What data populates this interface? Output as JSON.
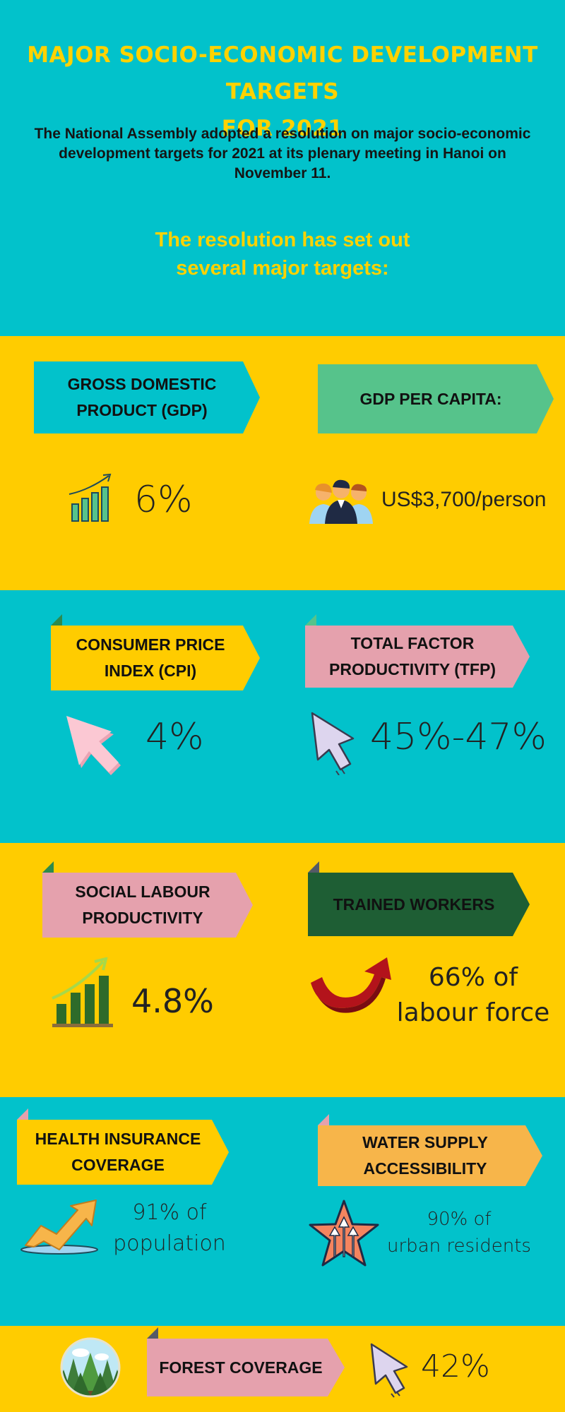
{
  "header": {
    "title_line1": "MAJOR SOCIO-ECONOMIC DEVELOPMENT TARGETS",
    "title_line2": "FOR 2021",
    "intro": "The National Assembly adopted a resolution on major socio-economic development targets for 2021 at its plenary meeting in Hanoi on November 11.",
    "lead_line1": "The resolution has set out",
    "lead_line2": "several major targets:"
  },
  "targets": [
    {
      "label_line1": "GROSS DOMESTIC",
      "label_line2": "PRODUCT (GDP)",
      "value": "6%",
      "icon": "bar-chart-arrow-icon",
      "color": "#02c2cb"
    },
    {
      "label_line1": "GDP PER CAPITA:",
      "label_line2": "",
      "value": "US$3,700/person",
      "icon": "people-group-icon",
      "color": "#56c38b"
    },
    {
      "label_line1": "CONSUMER PRICE",
      "label_line2": "INDEX (CPI)",
      "value": "4%",
      "icon": "cursor-arrow-icon",
      "color": "#ffcc00"
    },
    {
      "label_line1": "TOTAL FACTOR",
      "label_line2": "PRODUCTIVITY (TFP)",
      "value": "45%-47%",
      "icon": "cursor-arrow-icon",
      "color": "#e5a1ad"
    },
    {
      "label_line1": "SOCIAL LABOUR",
      "label_line2": "PRODUCTIVITY",
      "value": "4.8%",
      "icon": "bar-chart-growth-icon",
      "color": "#e5a1ad"
    },
    {
      "label_line1": "TRAINED WORKERS",
      "label_line2": "",
      "value_line1": "66% of",
      "value_line2": "labour force",
      "icon": "curved-red-arrow-icon",
      "color": "#1e5e34"
    },
    {
      "label_line1": "HEALTH INSURANCE",
      "label_line2": "COVERAGE",
      "value_line1": "91% of",
      "value_line2": "population",
      "icon": "rising-arrow-icon",
      "color": "#ffcc00"
    },
    {
      "label_line1": "WATER SUPPLY",
      "label_line2": "ACCESSIBILITY",
      "value_line1": "90% of",
      "value_line2": "urban residents",
      "icon": "star-arrows-icon",
      "color": "#f7b54a"
    },
    {
      "label_line1": "FOREST COVERAGE",
      "label_line2": "",
      "value": "42%",
      "icon": "forest-icon",
      "color": "#e5a1ad"
    }
  ]
}
